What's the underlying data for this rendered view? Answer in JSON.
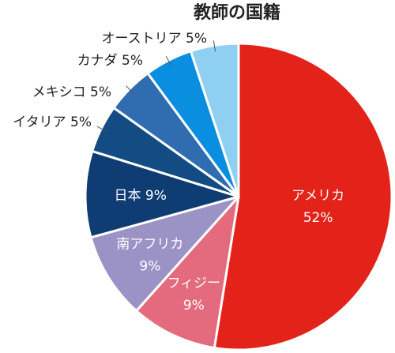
{
  "chart_data": {
    "type": "pie",
    "title": "教師の国籍",
    "start_angle_deg": 0,
    "direction": "clockwise",
    "slices": [
      {
        "label": "アメリカ",
        "value": 52,
        "value_text": "52%",
        "color": "#e3231a",
        "label_mode": "inside-two-line"
      },
      {
        "label": "フィジー",
        "value": 9,
        "value_text": "9%",
        "color": "#e46a7e",
        "label_mode": "inside-two-line"
      },
      {
        "label": "南アフリカ",
        "value": 9,
        "value_text": "9%",
        "color": "#9b93c6",
        "label_mode": "inside-two-line"
      },
      {
        "label": "日本",
        "value": 9,
        "value_text": "9%",
        "color": "#0f3d73",
        "label_mode": "inside-one-line"
      },
      {
        "label": "イタリア",
        "value": 5,
        "value_text": "5%",
        "color": "#124c82",
        "label_mode": "outside"
      },
      {
        "label": "メキシコ",
        "value": 5,
        "value_text": "5%",
        "color": "#2f6db0",
        "label_mode": "outside"
      },
      {
        "label": "カナダ",
        "value": 5,
        "value_text": "5%",
        "color": "#0a8ee0",
        "label_mode": "outside"
      },
      {
        "label": "オーストリア",
        "value": 5,
        "value_text": "5%",
        "color": "#8fd0f2",
        "label_mode": "outside"
      }
    ]
  }
}
